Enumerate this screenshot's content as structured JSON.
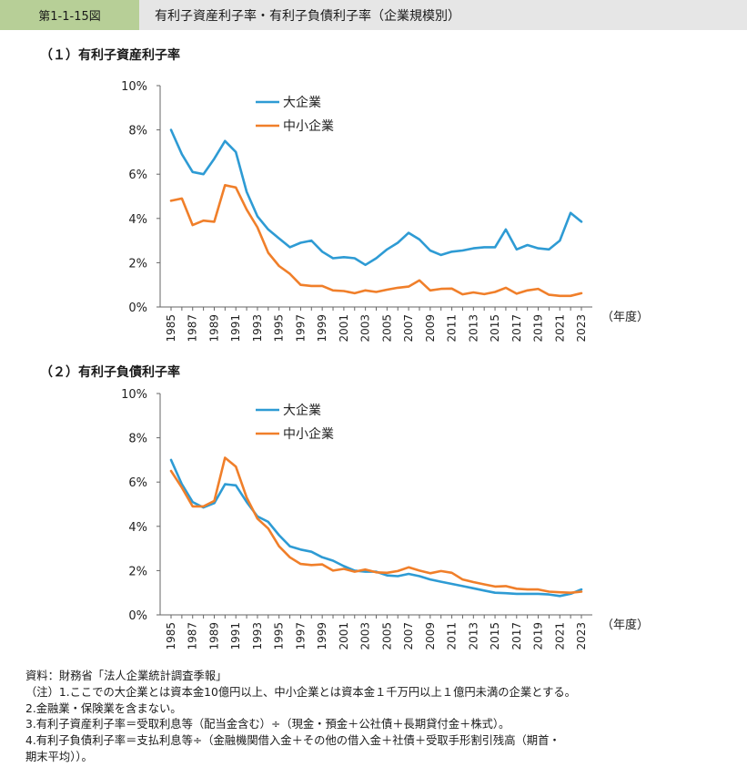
{
  "header": {
    "figure_number": "第1-1-15図",
    "title": "有利子資産利子率・有利子負債利子率（企業規模別）"
  },
  "colors": {
    "large": "#2e9bd4",
    "small": "#f07f2a",
    "axis": "#666666"
  },
  "chart_data": [
    {
      "type": "line",
      "title": "（１）有利子資産利子率",
      "x_unit_label": "（年度）",
      "x": [
        1985,
        1986,
        1987,
        1988,
        1989,
        1990,
        1991,
        1992,
        1993,
        1994,
        1995,
        1996,
        1997,
        1998,
        1999,
        2000,
        2001,
        2002,
        2003,
        2004,
        2005,
        2006,
        2007,
        2008,
        2009,
        2010,
        2011,
        2012,
        2013,
        2014,
        2015,
        2016,
        2017,
        2018,
        2019,
        2020,
        2021,
        2022,
        2023
      ],
      "x_tick_labels": [
        "1985",
        "1987",
        "1989",
        "1991",
        "1993",
        "1995",
        "1997",
        "1999",
        "2001",
        "2003",
        "2005",
        "2007",
        "2009",
        "2011",
        "2013",
        "2015",
        "2017",
        "2019",
        "2021",
        "2023"
      ],
      "ylim": [
        0,
        10
      ],
      "y_tick_labels": [
        "0%",
        "2%",
        "4%",
        "6%",
        "8%",
        "10%"
      ],
      "legend_placement": "top-center",
      "series": [
        {
          "name": "大企業",
          "values": [
            8.0,
            6.9,
            6.1,
            6.0,
            6.7,
            7.5,
            7.0,
            5.2,
            4.1,
            3.5,
            3.1,
            2.7,
            2.9,
            3.0,
            2.5,
            2.2,
            2.25,
            2.2,
            1.9,
            2.2,
            2.6,
            2.9,
            3.35,
            3.05,
            2.55,
            2.35,
            2.5,
            2.55,
            2.65,
            2.7,
            2.7,
            3.5,
            2.6,
            2.8,
            2.65,
            2.6,
            3.0,
            4.25,
            3.85
          ]
        },
        {
          "name": "中小企業",
          "values": [
            4.8,
            4.9,
            3.7,
            3.9,
            3.85,
            5.5,
            5.4,
            4.4,
            3.6,
            2.45,
            1.85,
            1.5,
            1.0,
            0.95,
            0.95,
            0.75,
            0.72,
            0.62,
            0.75,
            0.68,
            0.78,
            0.87,
            0.92,
            1.2,
            0.75,
            0.82,
            0.83,
            0.57,
            0.66,
            0.58,
            0.68,
            0.87,
            0.6,
            0.75,
            0.82,
            0.55,
            0.5,
            0.5,
            0.62
          ]
        }
      ]
    },
    {
      "type": "line",
      "title": "（２）有利子負債利子率",
      "x_unit_label": "（年度）",
      "x": [
        1985,
        1986,
        1987,
        1988,
        1989,
        1990,
        1991,
        1992,
        1993,
        1994,
        1995,
        1996,
        1997,
        1998,
        1999,
        2000,
        2001,
        2002,
        2003,
        2004,
        2005,
        2006,
        2007,
        2008,
        2009,
        2010,
        2011,
        2012,
        2013,
        2014,
        2015,
        2016,
        2017,
        2018,
        2019,
        2020,
        2021,
        2022,
        2023
      ],
      "x_tick_labels": [
        "1985",
        "1987",
        "1989",
        "1991",
        "1993",
        "1995",
        "1997",
        "1999",
        "2001",
        "2003",
        "2005",
        "2007",
        "2009",
        "2011",
        "2013",
        "2015",
        "2017",
        "2019",
        "2021",
        "2023"
      ],
      "ylim": [
        0,
        10
      ],
      "y_tick_labels": [
        "0%",
        "2%",
        "4%",
        "6%",
        "8%",
        "10%"
      ],
      "legend_placement": "top-center",
      "series": [
        {
          "name": "大企業",
          "values": [
            7.0,
            5.9,
            5.1,
            4.85,
            5.05,
            5.9,
            5.85,
            5.1,
            4.45,
            4.2,
            3.6,
            3.1,
            2.95,
            2.85,
            2.6,
            2.45,
            2.2,
            2.0,
            1.95,
            1.95,
            1.78,
            1.75,
            1.85,
            1.75,
            1.6,
            1.5,
            1.4,
            1.3,
            1.2,
            1.1,
            1.0,
            0.98,
            0.95,
            0.95,
            0.95,
            0.92,
            0.85,
            0.95,
            1.15
          ]
        },
        {
          "name": "中小企業",
          "values": [
            6.5,
            5.75,
            4.9,
            4.9,
            5.15,
            7.1,
            6.7,
            5.3,
            4.35,
            3.9,
            3.1,
            2.6,
            2.3,
            2.25,
            2.28,
            2.0,
            2.08,
            1.95,
            2.05,
            1.92,
            1.9,
            1.98,
            2.15,
            2.0,
            1.88,
            1.98,
            1.9,
            1.6,
            1.48,
            1.38,
            1.28,
            1.3,
            1.18,
            1.15,
            1.15,
            1.05,
            1.02,
            1.0,
            1.05
          ]
        }
      ]
    }
  ],
  "notes": {
    "source": "資料：財務省「法人企業統計調査季報」",
    "n1": "（注）1.ここでの大企業とは資本金10億円以上、中小企業とは資本金１千万円以上１億円未満の企業とする。",
    "n2": "2.金融業・保険業を含まない。",
    "n3": "3.有利子資産利子率＝受取利息等（配当金含む）÷（現金・預金＋公社債＋長期貸付金＋株式）。",
    "n4a": "4.有利子負債利子率＝支払利息等÷（金融機関借入金＋その他の借入金＋社債＋受取手形割引残高（期首・",
    "n4b": "期末平均））。"
  }
}
